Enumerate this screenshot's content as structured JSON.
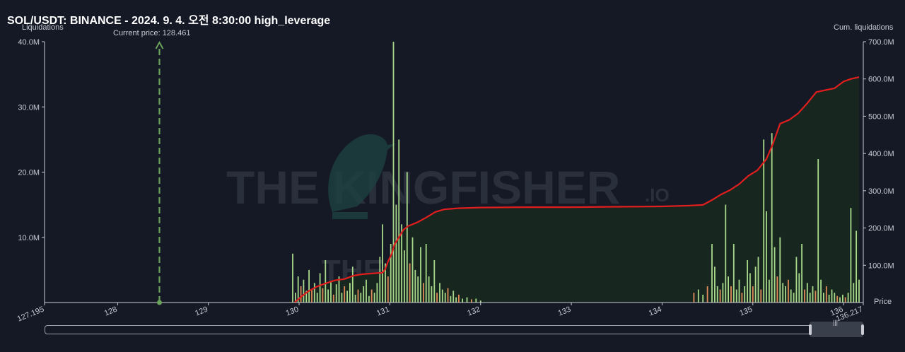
{
  "title": "SOL/USDT: BINANCE - 2024. 9. 4. 오전 8:30:00 high_leverage",
  "watermark": {
    "text_main": "THE KINGFISHER",
    "text_suffix": ".IO"
  },
  "chart_data": {
    "type": "bar",
    "ylabel_left": "Liquidations",
    "ylabel_right": "Cum. liquidations",
    "xlabel": "Price",
    "current_price_label": "Current price: 128.461",
    "current_price": 128.461,
    "xlim": [
      127.195,
      136.217
    ],
    "x_ticks": [
      "127.195",
      "128",
      "129",
      "130",
      "131",
      "132",
      "133",
      "134",
      "135",
      "136",
      "136.217"
    ],
    "x_tick_values": [
      127.195,
      128,
      129,
      130,
      131,
      132,
      133,
      134,
      135,
      136,
      136.217
    ],
    "ylim_left": [
      0,
      40000000
    ],
    "y_ticks_left": [
      "40.0M",
      "30.0M",
      "20.0M",
      "10.0M"
    ],
    "y_tick_values_left": [
      40000000,
      30000000,
      20000000,
      10000000
    ],
    "ylim_right": [
      0,
      700000000
    ],
    "y_ticks_right": [
      "700.0M",
      "600.0M",
      "500.0M",
      "400.0M",
      "300.0M",
      "200.0M",
      "100.0M"
    ],
    "y_tick_values_right": [
      700000000,
      600000000,
      500000000,
      400000000,
      300000000,
      200000000,
      100000000
    ],
    "colors": {
      "long_bar": "#a8d98a",
      "short_bar": "#e08a5a",
      "cum_line": "#e01e1e",
      "cum_fill": "#17261f",
      "current_price": "#6aa35a",
      "grid_axis": "#c9ccd4"
    },
    "series": [
      {
        "name": "Liquidations",
        "bars": [
          [
            129.93,
            7.5,
            "g"
          ],
          [
            129.96,
            1.5,
            "g"
          ],
          [
            129.99,
            4.0,
            "g"
          ],
          [
            130.02,
            2.5,
            "o"
          ],
          [
            130.05,
            3.5,
            "g"
          ],
          [
            130.08,
            1.8,
            "g"
          ],
          [
            130.11,
            5.0,
            "g"
          ],
          [
            130.14,
            2.0,
            "o"
          ],
          [
            130.17,
            3.0,
            "g"
          ],
          [
            130.2,
            1.5,
            "g"
          ],
          [
            130.23,
            4.5,
            "g"
          ],
          [
            130.26,
            2.2,
            "o"
          ],
          [
            130.29,
            6.5,
            "g"
          ],
          [
            130.32,
            2.0,
            "g"
          ],
          [
            130.35,
            3.2,
            "g"
          ],
          [
            130.38,
            1.2,
            "o"
          ],
          [
            130.41,
            2.8,
            "g"
          ],
          [
            130.44,
            4.0,
            "g"
          ],
          [
            130.47,
            1.5,
            "g"
          ],
          [
            130.5,
            2.5,
            "o"
          ],
          [
            130.53,
            1.8,
            "g"
          ],
          [
            130.56,
            3.0,
            "g"
          ],
          [
            130.59,
            5.5,
            "g"
          ],
          [
            130.62,
            1.2,
            "g"
          ],
          [
            130.65,
            2.0,
            "o"
          ],
          [
            130.68,
            1.5,
            "g"
          ],
          [
            130.71,
            2.5,
            "g"
          ],
          [
            130.74,
            3.5,
            "g"
          ],
          [
            130.77,
            1.0,
            "g"
          ],
          [
            130.8,
            2.0,
            "o"
          ],
          [
            130.83,
            1.5,
            "g"
          ],
          [
            130.86,
            3.0,
            "g"
          ],
          [
            130.89,
            7.0,
            "g"
          ],
          [
            130.92,
            12.0,
            "g"
          ],
          [
            130.95,
            6.0,
            "g"
          ],
          [
            130.98,
            4.0,
            "o"
          ],
          [
            131.01,
            9.0,
            "g"
          ],
          [
            131.04,
            40.0,
            "g"
          ],
          [
            131.07,
            15.0,
            "g"
          ],
          [
            131.1,
            25.0,
            "g"
          ],
          [
            131.13,
            12.0,
            "g"
          ],
          [
            131.16,
            8.0,
            "g"
          ],
          [
            131.19,
            20.0,
            "g"
          ],
          [
            131.22,
            6.0,
            "o"
          ],
          [
            131.25,
            10.0,
            "g"
          ],
          [
            131.28,
            5.0,
            "g"
          ],
          [
            131.31,
            4.0,
            "g"
          ],
          [
            131.34,
            8.5,
            "g"
          ],
          [
            131.37,
            3.0,
            "o"
          ],
          [
            131.4,
            9.0,
            "g"
          ],
          [
            131.43,
            4.0,
            "g"
          ],
          [
            131.46,
            2.5,
            "g"
          ],
          [
            131.49,
            6.5,
            "g"
          ],
          [
            131.52,
            1.5,
            "o"
          ],
          [
            131.55,
            3.0,
            "g"
          ],
          [
            131.58,
            2.0,
            "g"
          ],
          [
            131.61,
            1.5,
            "g"
          ],
          [
            131.64,
            2.2,
            "o"
          ],
          [
            131.67,
            1.0,
            "g"
          ],
          [
            131.7,
            1.8,
            "g"
          ],
          [
            131.73,
            0.8,
            "g"
          ],
          [
            131.76,
            1.2,
            "o"
          ],
          [
            131.8,
            0.6,
            "g"
          ],
          [
            131.85,
            0.8,
            "g"
          ],
          [
            131.9,
            0.5,
            "o"
          ],
          [
            131.95,
            0.6,
            "g"
          ],
          [
            132.0,
            0.3,
            "g"
          ],
          [
            134.35,
            1.5,
            "o"
          ],
          [
            134.4,
            2.0,
            "g"
          ],
          [
            134.45,
            1.2,
            "g"
          ],
          [
            134.5,
            2.5,
            "o"
          ],
          [
            134.55,
            9.0,
            "g"
          ],
          [
            134.58,
            5.5,
            "g"
          ],
          [
            134.61,
            2.5,
            "g"
          ],
          [
            134.64,
            2.0,
            "o"
          ],
          [
            134.67,
            3.0,
            "g"
          ],
          [
            134.7,
            15.0,
            "g"
          ],
          [
            134.73,
            4.0,
            "g"
          ],
          [
            134.76,
            2.5,
            "o"
          ],
          [
            134.79,
            9.0,
            "g"
          ],
          [
            134.82,
            2.0,
            "g"
          ],
          [
            134.85,
            3.5,
            "g"
          ],
          [
            134.88,
            1.5,
            "o"
          ],
          [
            134.91,
            2.5,
            "g"
          ],
          [
            134.94,
            6.5,
            "g"
          ],
          [
            134.97,
            4.5,
            "g"
          ],
          [
            135.0,
            2.5,
            "o"
          ],
          [
            135.03,
            5.5,
            "g"
          ],
          [
            135.06,
            7.0,
            "g"
          ],
          [
            135.09,
            2.0,
            "o"
          ],
          [
            135.12,
            25.0,
            "g"
          ],
          [
            135.15,
            14.0,
            "g"
          ],
          [
            135.18,
            3.5,
            "g"
          ],
          [
            135.21,
            26.0,
            "g"
          ],
          [
            135.24,
            8.5,
            "g"
          ],
          [
            135.27,
            4.0,
            "o"
          ],
          [
            135.3,
            10.0,
            "g"
          ],
          [
            135.33,
            3.0,
            "g"
          ],
          [
            135.36,
            2.5,
            "g"
          ],
          [
            135.39,
            3.5,
            "o"
          ],
          [
            135.42,
            2.0,
            "g"
          ],
          [
            135.45,
            1.5,
            "g"
          ],
          [
            135.48,
            7.0,
            "g"
          ],
          [
            135.51,
            4.5,
            "g"
          ],
          [
            135.54,
            9.0,
            "g"
          ],
          [
            135.57,
            2.0,
            "o"
          ],
          [
            135.6,
            3.0,
            "g"
          ],
          [
            135.63,
            1.5,
            "g"
          ],
          [
            135.66,
            2.5,
            "g"
          ],
          [
            135.69,
            1.8,
            "o"
          ],
          [
            135.72,
            22.0,
            "g"
          ],
          [
            135.75,
            3.5,
            "g"
          ],
          [
            135.78,
            1.5,
            "g"
          ],
          [
            135.81,
            2.5,
            "o"
          ],
          [
            135.84,
            1.2,
            "g"
          ],
          [
            135.87,
            2.0,
            "g"
          ],
          [
            135.9,
            1.5,
            "g"
          ],
          [
            135.93,
            1.0,
            "o"
          ],
          [
            135.96,
            0.8,
            "g"
          ],
          [
            135.99,
            1.2,
            "g"
          ],
          [
            136.02,
            0.8,
            "o"
          ],
          [
            136.05,
            1.5,
            "g"
          ],
          [
            136.08,
            14.5,
            "g"
          ],
          [
            136.11,
            3.0,
            "g"
          ],
          [
            136.14,
            11.0,
            "g"
          ],
          [
            136.17,
            3.5,
            "g"
          ]
        ]
      },
      {
        "name": "Cum. liquidations",
        "points": [
          [
            129.95,
            0
          ],
          [
            130.02,
            15
          ],
          [
            130.1,
            30
          ],
          [
            130.2,
            43
          ],
          [
            130.3,
            52
          ],
          [
            130.4,
            60
          ],
          [
            130.5,
            63
          ],
          [
            130.6,
            72
          ],
          [
            130.7,
            76
          ],
          [
            130.8,
            78
          ],
          [
            130.92,
            80
          ],
          [
            130.95,
            90
          ],
          [
            130.98,
            110
          ],
          [
            131.02,
            130
          ],
          [
            131.05,
            155
          ],
          [
            131.1,
            175
          ],
          [
            131.15,
            195
          ],
          [
            131.2,
            205
          ],
          [
            131.3,
            215
          ],
          [
            131.4,
            228
          ],
          [
            131.5,
            243
          ],
          [
            131.6,
            250
          ],
          [
            131.75,
            253
          ],
          [
            132.0,
            255
          ],
          [
            132.5,
            256
          ],
          [
            133.0,
            256
          ],
          [
            133.5,
            257
          ],
          [
            134.0,
            258
          ],
          [
            134.3,
            260
          ],
          [
            134.45,
            262
          ],
          [
            134.55,
            275
          ],
          [
            134.65,
            290
          ],
          [
            134.75,
            302
          ],
          [
            134.85,
            318
          ],
          [
            134.95,
            340
          ],
          [
            135.05,
            355
          ],
          [
            135.15,
            385
          ],
          [
            135.22,
            425
          ],
          [
            135.3,
            480
          ],
          [
            135.4,
            490
          ],
          [
            135.5,
            508
          ],
          [
            135.6,
            535
          ],
          [
            135.7,
            565
          ],
          [
            135.8,
            570
          ],
          [
            135.9,
            575
          ],
          [
            136.0,
            593
          ],
          [
            136.08,
            600
          ],
          [
            136.17,
            605
          ]
        ]
      }
    ],
    "grid": false,
    "legend": "none"
  }
}
